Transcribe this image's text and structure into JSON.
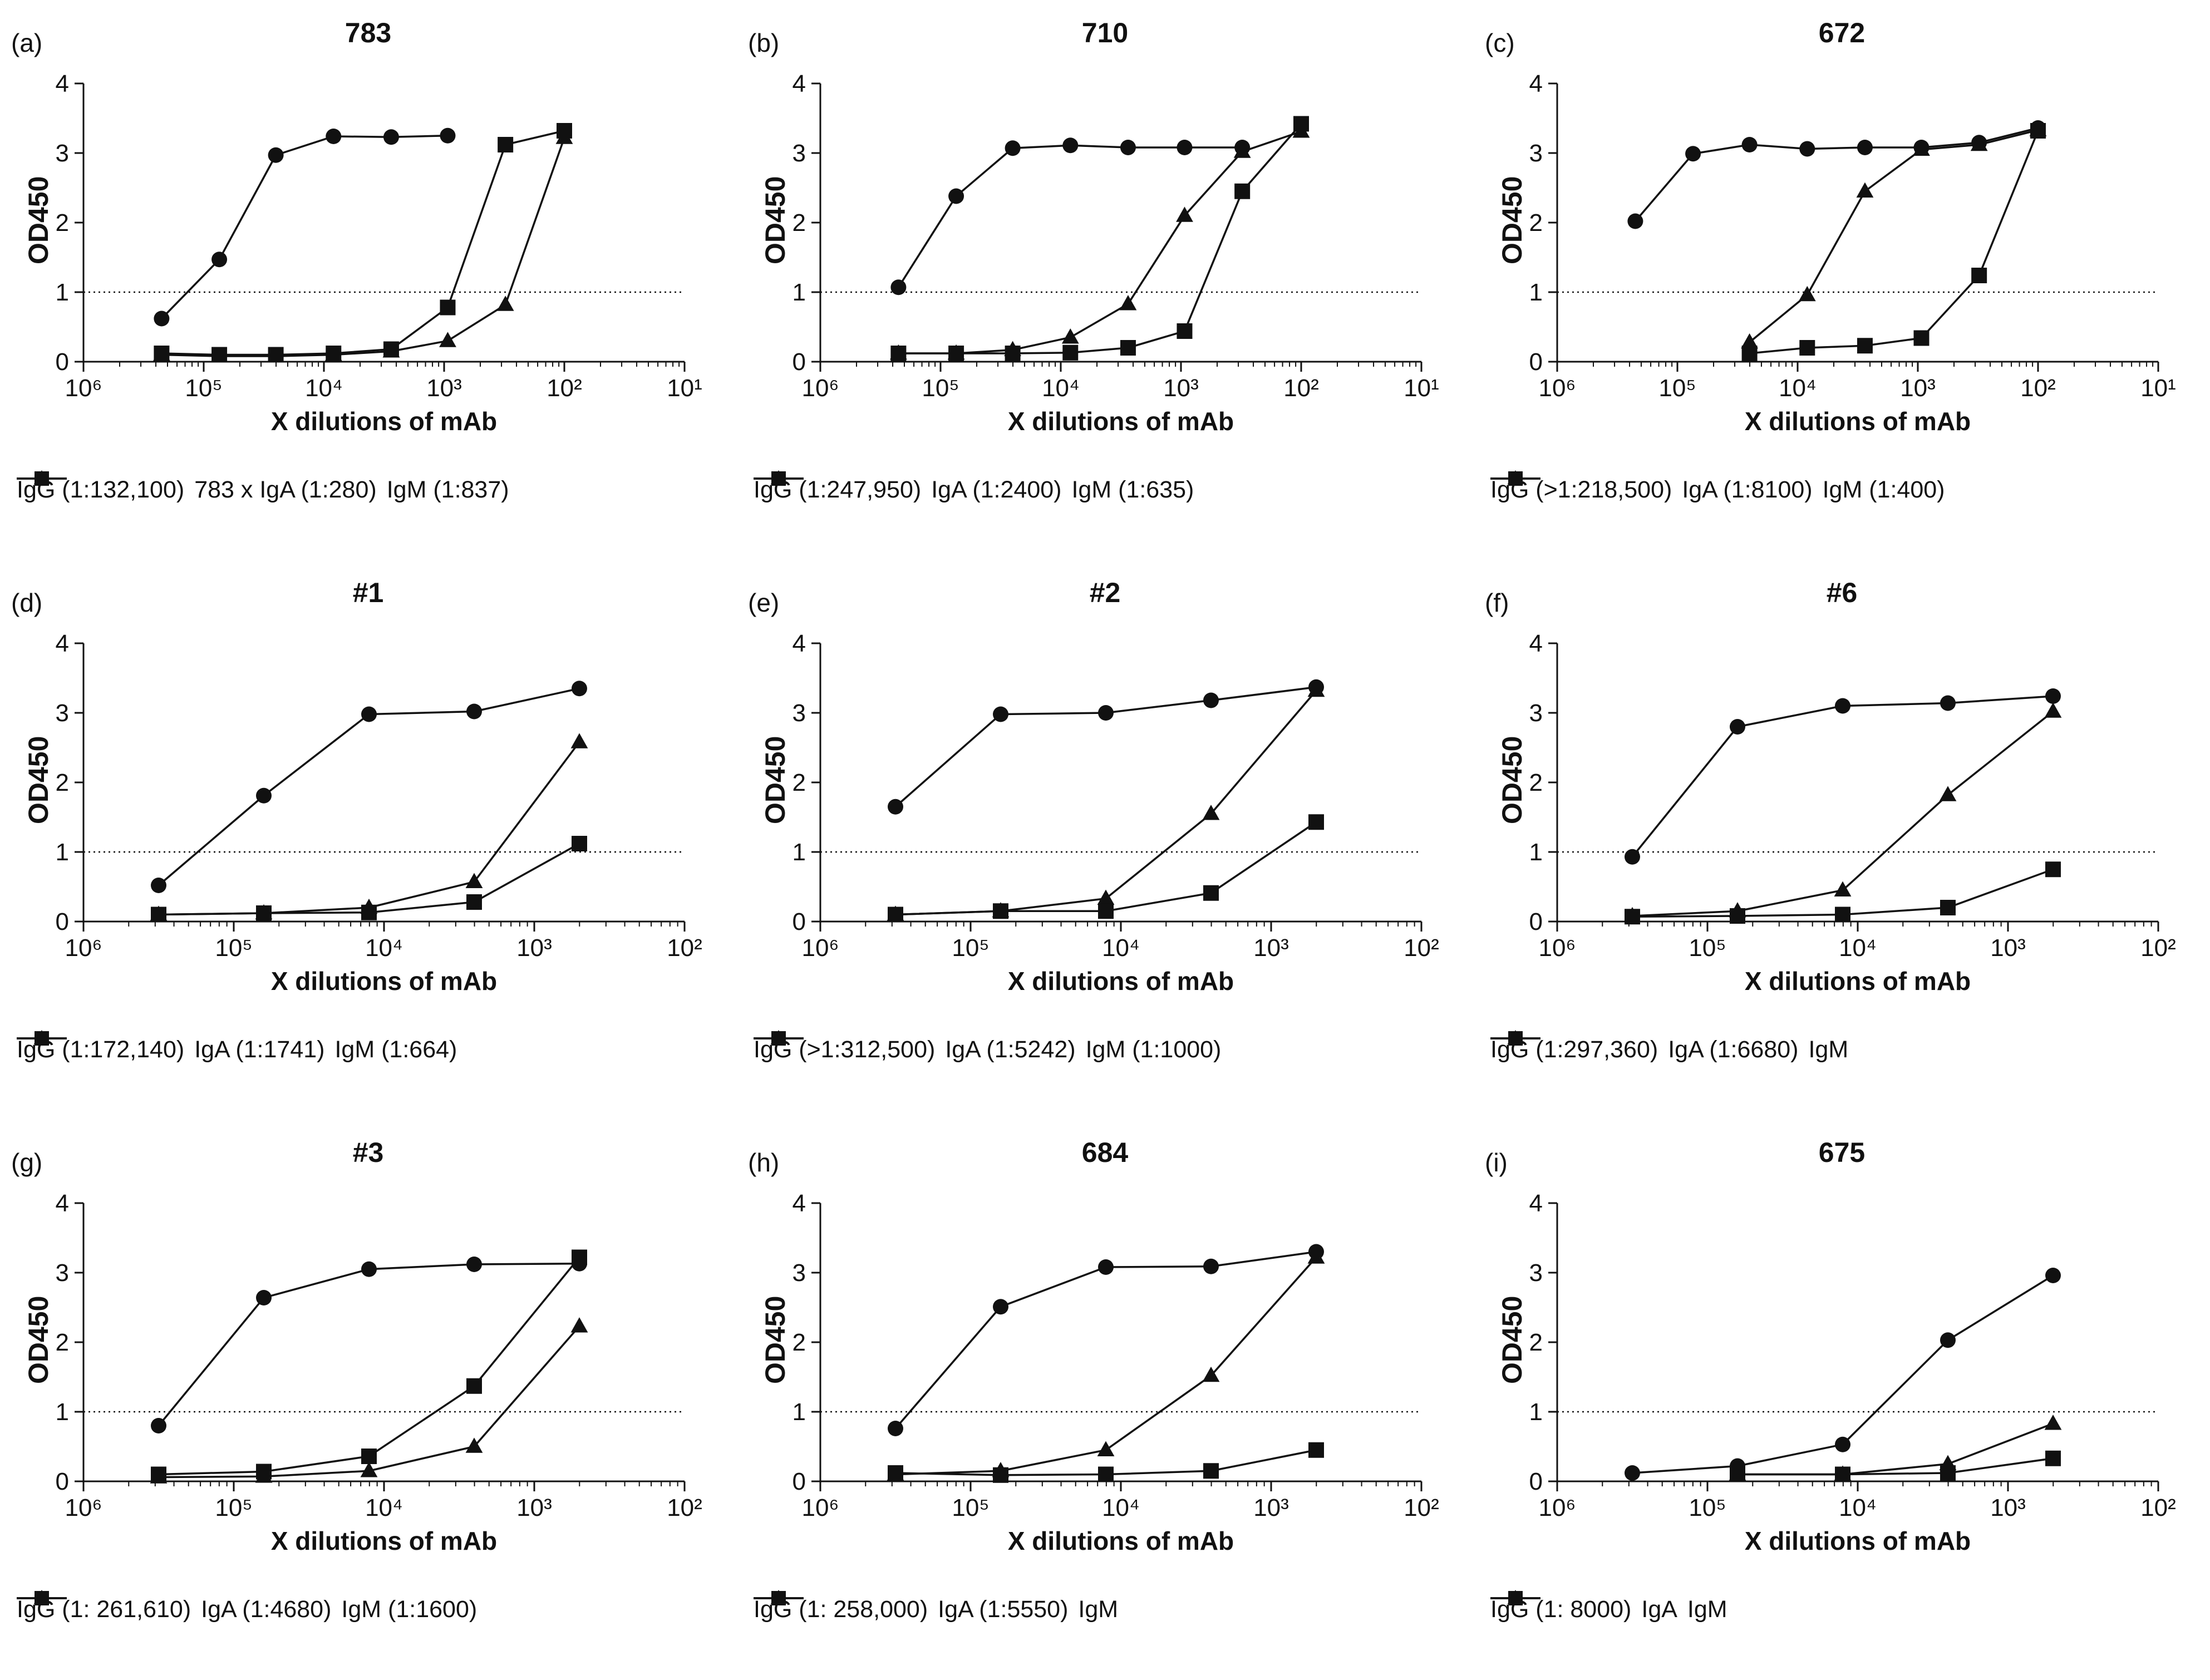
{
  "chart_data": [
    {
      "type": "line",
      "label": "(a)",
      "title": "783",
      "xlabel": "X dilutions of mAb",
      "ylabel": "OD450",
      "xlim_exponents": [
        6,
        1
      ],
      "ylim": [
        0,
        4
      ],
      "yticks": [
        0,
        1,
        2,
        3,
        4
      ],
      "threshold": 1,
      "x_tick_labels": [
        "10⁶",
        "10⁵",
        "10⁴",
        "10³",
        "10²",
        "10¹"
      ],
      "series": [
        {
          "name": "IgG (1:132,100)",
          "marker": "circle",
          "log10_dilution": [
            5.35,
            4.87,
            4.4,
            3.92,
            3.44,
            2.97
          ],
          "values": [
            0.62,
            1.47,
            2.97,
            3.24,
            3.23,
            3.25
          ]
        },
        {
          "name": "783 x IgA (1:280)",
          "marker": "triangle",
          "log10_dilution": [
            5.35,
            4.87,
            4.4,
            3.92,
            3.44,
            2.97,
            2.49,
            2.0
          ],
          "values": [
            0.1,
            0.08,
            0.08,
            0.1,
            0.15,
            0.3,
            0.82,
            3.22
          ]
        },
        {
          "name": "IgM (1:837)",
          "marker": "square",
          "log10_dilution": [
            5.35,
            4.87,
            4.4,
            3.92,
            3.44,
            2.97,
            2.49,
            2.0
          ],
          "values": [
            0.12,
            0.1,
            0.1,
            0.12,
            0.18,
            0.78,
            3.12,
            3.32
          ]
        }
      ]
    },
    {
      "type": "line",
      "label": "(b)",
      "title": "710",
      "xlabel": "X dilutions of mAb",
      "ylabel": "OD450",
      "xlim_exponents": [
        6,
        1
      ],
      "ylim": [
        0,
        4
      ],
      "yticks": [
        0,
        1,
        2,
        3,
        4
      ],
      "threshold": 1,
      "x_tick_labels": [
        "10⁶",
        "10⁵",
        "10⁴",
        "10³",
        "10²",
        "10¹"
      ],
      "series": [
        {
          "name": "IgG (1:247,950)",
          "marker": "circle",
          "log10_dilution": [
            5.35,
            4.87,
            4.4,
            3.92,
            3.44,
            2.97,
            2.49
          ],
          "values": [
            1.07,
            2.38,
            3.07,
            3.11,
            3.08,
            3.08,
            3.08
          ]
        },
        {
          "name": "IgA (1:2400)",
          "marker": "triangle",
          "log10_dilution": [
            5.35,
            4.87,
            4.4,
            3.92,
            3.44,
            2.97,
            2.49,
            2.0
          ],
          "values": [
            0.12,
            0.12,
            0.17,
            0.35,
            0.83,
            2.1,
            3.02,
            3.31
          ]
        },
        {
          "name": "IgM (1:635)",
          "marker": "square",
          "log10_dilution": [
            5.35,
            4.87,
            4.4,
            3.92,
            3.44,
            2.97,
            2.49,
            2.0
          ],
          "values": [
            0.12,
            0.12,
            0.12,
            0.13,
            0.2,
            0.44,
            2.45,
            3.42
          ]
        }
      ]
    },
    {
      "type": "line",
      "label": "(c)",
      "title": "672",
      "xlabel": "X dilutions of mAb",
      "ylabel": "OD450",
      "xlim_exponents": [
        6,
        1
      ],
      "ylim": [
        0,
        4
      ],
      "yticks": [
        0,
        1,
        2,
        3,
        4
      ],
      "threshold": 1,
      "x_tick_labels": [
        "10⁶",
        "10⁵",
        "10⁴",
        "10³",
        "10²",
        "10¹"
      ],
      "series": [
        {
          "name": "IgG (>1:218,500)",
          "marker": "circle",
          "log10_dilution": [
            5.35,
            4.87,
            4.4,
            3.92,
            3.44,
            2.97,
            2.49,
            2.0
          ],
          "values": [
            2.02,
            2.99,
            3.12,
            3.06,
            3.08,
            3.08,
            3.15,
            3.36
          ]
        },
        {
          "name": "IgA (1:8100)",
          "marker": "triangle",
          "log10_dilution": [
            4.4,
            3.92,
            3.44,
            2.97,
            2.49,
            2.0
          ],
          "values": [
            0.28,
            0.96,
            2.45,
            3.05,
            3.12,
            3.33
          ]
        },
        {
          "name": "IgM (1:400)",
          "marker": "square",
          "log10_dilution": [
            4.4,
            3.92,
            3.44,
            2.97,
            2.49,
            2.0
          ],
          "values": [
            0.12,
            0.2,
            0.23,
            0.34,
            1.24,
            3.32
          ]
        }
      ]
    },
    {
      "type": "line",
      "label": "(d)",
      "title": "#1",
      "xlabel": "X dilutions of mAb",
      "ylabel": "OD450",
      "xlim_exponents": [
        6,
        2
      ],
      "ylim": [
        0,
        4
      ],
      "yticks": [
        0,
        1,
        2,
        3,
        4
      ],
      "threshold": 1,
      "x_tick_labels": [
        "10⁶",
        "10⁵",
        "10⁴",
        "10³",
        "10²"
      ],
      "series": [
        {
          "name": "IgG (1:172,140)",
          "marker": "circle",
          "log10_dilution": [
            5.5,
            4.8,
            4.1,
            3.4,
            2.7
          ],
          "values": [
            0.52,
            1.81,
            2.98,
            3.02,
            3.35
          ]
        },
        {
          "name": "IgA (1:1741)",
          "marker": "triangle",
          "log10_dilution": [
            5.5,
            4.8,
            4.1,
            3.4,
            2.7
          ],
          "values": [
            0.1,
            0.12,
            0.2,
            0.57,
            2.58
          ]
        },
        {
          "name": "IgM (1:664)",
          "marker": "square",
          "log10_dilution": [
            5.5,
            4.8,
            4.1,
            3.4,
            2.7
          ],
          "values": [
            0.1,
            0.12,
            0.13,
            0.28,
            1.12
          ]
        }
      ]
    },
    {
      "type": "line",
      "label": "(e)",
      "title": "#2",
      "xlabel": "X dilutions of mAb",
      "ylabel": "OD450",
      "xlim_exponents": [
        6,
        2
      ],
      "ylim": [
        0,
        4
      ],
      "yticks": [
        0,
        1,
        2,
        3,
        4
      ],
      "threshold": 1,
      "x_tick_labels": [
        "10⁶",
        "10⁵",
        "10⁴",
        "10³",
        "10²"
      ],
      "series": [
        {
          "name": "IgG (>1:312,500)",
          "marker": "circle",
          "log10_dilution": [
            5.5,
            4.8,
            4.1,
            3.4,
            2.7
          ],
          "values": [
            1.65,
            2.98,
            3.0,
            3.18,
            3.37
          ]
        },
        {
          "name": "IgA (1:5242)",
          "marker": "triangle",
          "log10_dilution": [
            5.5,
            4.8,
            4.1,
            3.4,
            2.7
          ],
          "values": [
            0.1,
            0.15,
            0.33,
            1.55,
            3.32
          ]
        },
        {
          "name": "IgM (1:1000)",
          "marker": "square",
          "log10_dilution": [
            5.5,
            4.8,
            4.1,
            3.4,
            2.7
          ],
          "values": [
            0.1,
            0.15,
            0.15,
            0.41,
            1.43
          ]
        }
      ]
    },
    {
      "type": "line",
      "label": "(f)",
      "title": "#6",
      "xlabel": "X dilutions of mAb",
      "ylabel": "OD450",
      "xlim_exponents": [
        6,
        2
      ],
      "ylim": [
        0,
        4
      ],
      "yticks": [
        0,
        1,
        2,
        3,
        4
      ],
      "threshold": 1,
      "x_tick_labels": [
        "10⁶",
        "10⁵",
        "10⁴",
        "10³",
        "10²"
      ],
      "series": [
        {
          "name": "IgG (1:297,360)",
          "marker": "circle",
          "log10_dilution": [
            5.5,
            4.8,
            4.1,
            3.4,
            2.7
          ],
          "values": [
            0.93,
            2.8,
            3.1,
            3.14,
            3.24
          ]
        },
        {
          "name": "IgA  (1:6680)",
          "marker": "triangle",
          "log10_dilution": [
            5.5,
            4.8,
            4.1,
            3.4,
            2.7
          ],
          "values": [
            0.08,
            0.15,
            0.45,
            1.82,
            3.02
          ]
        },
        {
          "name": "IgM",
          "marker": "square",
          "log10_dilution": [
            5.5,
            4.8,
            4.1,
            3.4,
            2.7
          ],
          "values": [
            0.07,
            0.08,
            0.1,
            0.2,
            0.75
          ]
        }
      ]
    },
    {
      "type": "line",
      "label": "(g)",
      "title": "#3",
      "xlabel": "X dilutions of mAb",
      "ylabel": "OD450",
      "xlim_exponents": [
        6,
        2
      ],
      "ylim": [
        0,
        4
      ],
      "yticks": [
        0,
        1,
        2,
        3,
        4
      ],
      "threshold": 1,
      "x_tick_labels": [
        "10⁶",
        "10⁵",
        "10⁴",
        "10³",
        "10²"
      ],
      "series": [
        {
          "name": "IgG (1: 261,610)",
          "marker": "circle",
          "log10_dilution": [
            5.5,
            4.8,
            4.1,
            3.4,
            2.7
          ],
          "values": [
            0.8,
            2.64,
            3.05,
            3.12,
            3.13
          ]
        },
        {
          "name": "IgA (1:4680)",
          "marker": "triangle",
          "log10_dilution": [
            5.5,
            4.8,
            4.1,
            3.4,
            2.7
          ],
          "values": [
            0.06,
            0.07,
            0.15,
            0.5,
            2.23
          ]
        },
        {
          "name": "IgM (1:1600)",
          "marker": "square",
          "log10_dilution": [
            5.5,
            4.8,
            4.1,
            3.4,
            2.7
          ],
          "values": [
            0.1,
            0.14,
            0.36,
            1.37,
            3.22
          ]
        }
      ]
    },
    {
      "type": "line",
      "label": "(h)",
      "title": "684",
      "xlabel": "X dilutions of mAb",
      "ylabel": "OD450",
      "xlim_exponents": [
        6,
        2
      ],
      "ylim": [
        0,
        4
      ],
      "yticks": [
        0,
        1,
        2,
        3,
        4
      ],
      "threshold": 1,
      "x_tick_labels": [
        "10⁶",
        "10⁵",
        "10⁴",
        "10³",
        "10²"
      ],
      "series": [
        {
          "name": "IgG  (1: 258,000)",
          "marker": "circle",
          "log10_dilution": [
            5.5,
            4.8,
            4.1,
            3.4,
            2.7
          ],
          "values": [
            0.76,
            2.51,
            3.08,
            3.09,
            3.3
          ]
        },
        {
          "name": "IgA  (1:5550)",
          "marker": "triangle",
          "log10_dilution": [
            5.5,
            4.8,
            4.1,
            3.4,
            2.7
          ],
          "values": [
            0.1,
            0.15,
            0.45,
            1.52,
            3.22
          ]
        },
        {
          "name": "IgM",
          "marker": "square",
          "log10_dilution": [
            5.5,
            4.8,
            4.1,
            3.4,
            2.7
          ],
          "values": [
            0.12,
            0.09,
            0.1,
            0.15,
            0.45
          ]
        }
      ]
    },
    {
      "type": "line",
      "label": "(i)",
      "title": "675",
      "xlabel": "X dilutions of mAb",
      "ylabel": "OD450",
      "xlim_exponents": [
        6,
        2
      ],
      "ylim": [
        0,
        4
      ],
      "yticks": [
        0,
        1,
        2,
        3,
        4
      ],
      "threshold": 1,
      "x_tick_labels": [
        "10⁶",
        "10⁵",
        "10⁴",
        "10³",
        "10²"
      ],
      "series": [
        {
          "name": "IgG (1: 8000)",
          "marker": "circle",
          "log10_dilution": [
            5.5,
            4.8,
            4.1,
            3.4,
            2.7
          ],
          "values": [
            0.12,
            0.22,
            0.53,
            2.03,
            2.96
          ]
        },
        {
          "name": "IgA",
          "marker": "triangle",
          "log10_dilution": [
            4.8,
            4.1,
            3.4,
            2.7
          ],
          "values": [
            0.1,
            0.1,
            0.25,
            0.83
          ]
        },
        {
          "name": "IgM",
          "marker": "square",
          "log10_dilution": [
            4.8,
            4.1,
            3.4,
            2.7
          ],
          "values": [
            0.1,
            0.1,
            0.12,
            0.33
          ]
        }
      ]
    }
  ]
}
